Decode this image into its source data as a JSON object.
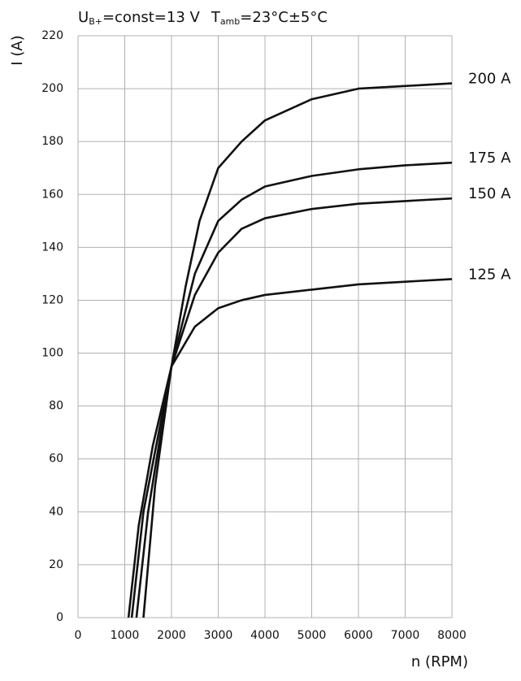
{
  "chart_data": {
    "type": "line",
    "title": {
      "u": "U",
      "u_sub": "B+",
      "u_rest": "=const=13 V",
      "t": "T",
      "t_sub": "amb",
      "t_rest": "=23°C±5°C"
    },
    "x_label": "n (RPM)",
    "y_label": "I (A)",
    "xlim": [
      0,
      8000
    ],
    "xticks": [
      0,
      1000,
      2000,
      3000,
      4000,
      5000,
      6000,
      7000,
      8000
    ],
    "ylim": [
      0,
      220
    ],
    "yticks": [
      0,
      20,
      40,
      60,
      80,
      100,
      120,
      140,
      160,
      180,
      200,
      220
    ],
    "grid": true,
    "series": [
      {
        "name": "200 A",
        "color": "#111111",
        "x": [
          1400,
          1500,
          1650,
          2000,
          2300,
          2600,
          3000,
          3500,
          4000,
          5000,
          6000,
          7000,
          8000
        ],
        "values": [
          0,
          20,
          50,
          95,
          125,
          150,
          170,
          180,
          188,
          196,
          200,
          201,
          202
        ]
      },
      {
        "name": "175 A",
        "color": "#111111",
        "x": [
          1250,
          1500,
          2000,
          2500,
          3000,
          3500,
          4000,
          5000,
          6000,
          7000,
          8000
        ],
        "values": [
          0,
          40,
          95,
          130,
          150,
          158,
          163,
          167,
          169.5,
          171,
          172
        ]
      },
      {
        "name": "150 A",
        "color": "#111111",
        "x": [
          1150,
          1400,
          2000,
          2500,
          3000,
          3500,
          4000,
          5000,
          6000,
          7000,
          8000
        ],
        "values": [
          0,
          40,
          95,
          122,
          138,
          147,
          151,
          154.5,
          156.5,
          157.5,
          158.5
        ]
      },
      {
        "name": "125 A",
        "color": "#111111",
        "x": [
          1080,
          1300,
          1600,
          2000,
          2500,
          3000,
          3500,
          4000,
          5000,
          6000,
          7000,
          8000
        ],
        "values": [
          0,
          35,
          65,
          95,
          110,
          117,
          120,
          122,
          124,
          126,
          127,
          128
        ]
      }
    ]
  }
}
